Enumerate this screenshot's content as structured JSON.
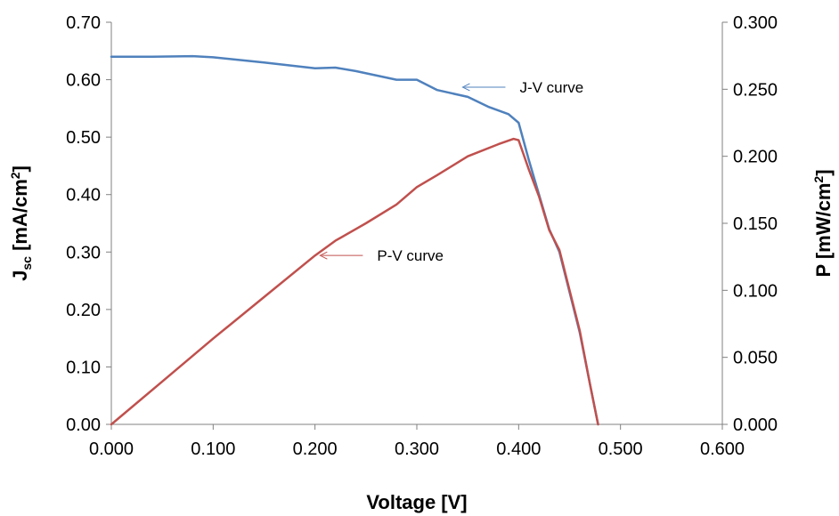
{
  "chart_data": {
    "type": "line",
    "xlabel": "Voltage [V]",
    "ylabel_main": "J",
    "ylabel_sub": "sc",
    "ylabel_unit": " [mA/cm",
    "ylabel_sup": "2",
    "ylabel_end": "]",
    "y2label_main": "P [mW/cm",
    "y2label_sup": "2",
    "y2label_end": "]",
    "xlim": [
      0,
      0.6
    ],
    "ylim": [
      0,
      0.7
    ],
    "y2lim": [
      0,
      0.3
    ],
    "grid": false,
    "x_ticks": [
      "0.000",
      "0.100",
      "0.200",
      "0.300",
      "0.400",
      "0.500",
      "0.600"
    ],
    "y_ticks": [
      "0.00",
      "0.10",
      "0.20",
      "0.30",
      "0.40",
      "0.50",
      "0.60",
      "0.70"
    ],
    "y2_ticks": [
      "0.000",
      "0.050",
      "0.100",
      "0.150",
      "0.200",
      "0.250",
      "0.300"
    ],
    "series": [
      {
        "name": "J-V curve",
        "axis": "left",
        "color": "#4f81bd",
        "x": [
          0.0,
          0.04,
          0.08,
          0.1,
          0.15,
          0.2,
          0.22,
          0.24,
          0.28,
          0.3,
          0.32,
          0.35,
          0.37,
          0.39,
          0.4,
          0.41,
          0.42,
          0.43,
          0.44,
          0.45,
          0.46,
          0.47,
          0.478
        ],
        "y": [
          0.64,
          0.64,
          0.641,
          0.639,
          0.63,
          0.62,
          0.621,
          0.615,
          0.6,
          0.6,
          0.582,
          0.57,
          0.553,
          0.54,
          0.525,
          0.46,
          0.4,
          0.34,
          0.3,
          0.23,
          0.16,
          0.07,
          0.0
        ]
      },
      {
        "name": "P-V curve",
        "axis": "right",
        "color": "#c0504d",
        "x": [
          0.0,
          0.05,
          0.1,
          0.15,
          0.2,
          0.22,
          0.25,
          0.28,
          0.3,
          0.32,
          0.35,
          0.38,
          0.395,
          0.4,
          0.41,
          0.42,
          0.43,
          0.44,
          0.45,
          0.46,
          0.47,
          0.478
        ],
        "y": [
          0.0,
          0.032,
          0.064,
          0.095,
          0.126,
          0.137,
          0.15,
          0.164,
          0.177,
          0.186,
          0.2,
          0.209,
          0.213,
          0.212,
          0.19,
          0.17,
          0.145,
          0.13,
          0.1,
          0.07,
          0.03,
          0.0
        ]
      }
    ],
    "annotations": [
      {
        "text": "J-V curve",
        "series": 0,
        "arrow_to": [
          0.345,
          0.587
        ]
      },
      {
        "text": "P-V curve",
        "series": 1,
        "arrow_to": [
          0.205,
          0.126
        ]
      }
    ]
  }
}
